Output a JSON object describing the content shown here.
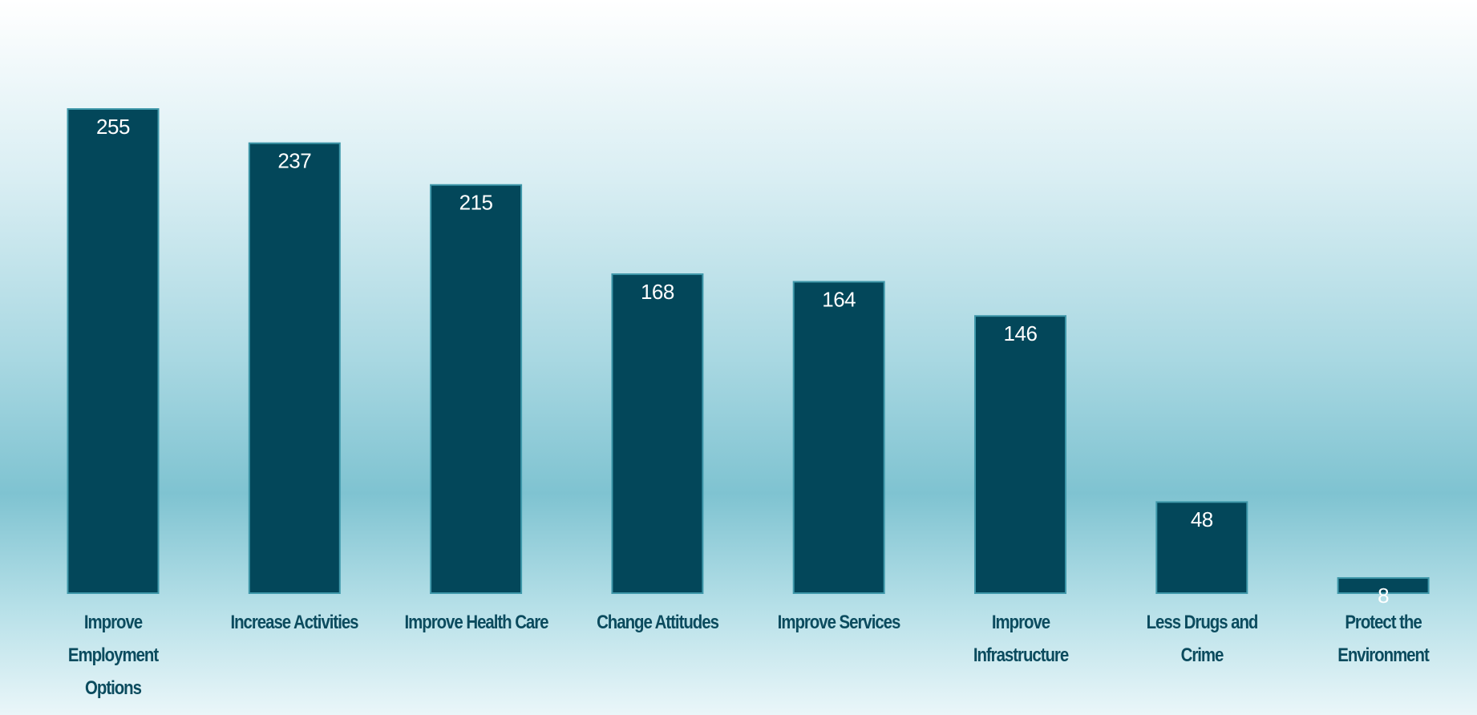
{
  "chart_data": {
    "type": "bar",
    "categories": [
      "Improve\nEmployment\nOptions",
      "Increase Activities",
      "Improve Health Care",
      "Change Attitudes",
      "Improve Services",
      "Improve\nInfrastructure",
      "Less Drugs and\nCrime",
      "Protect the\nEnvironment"
    ],
    "values": [
      255,
      237,
      215,
      168,
      164,
      146,
      48,
      8
    ],
    "color": "#03475a"
  }
}
